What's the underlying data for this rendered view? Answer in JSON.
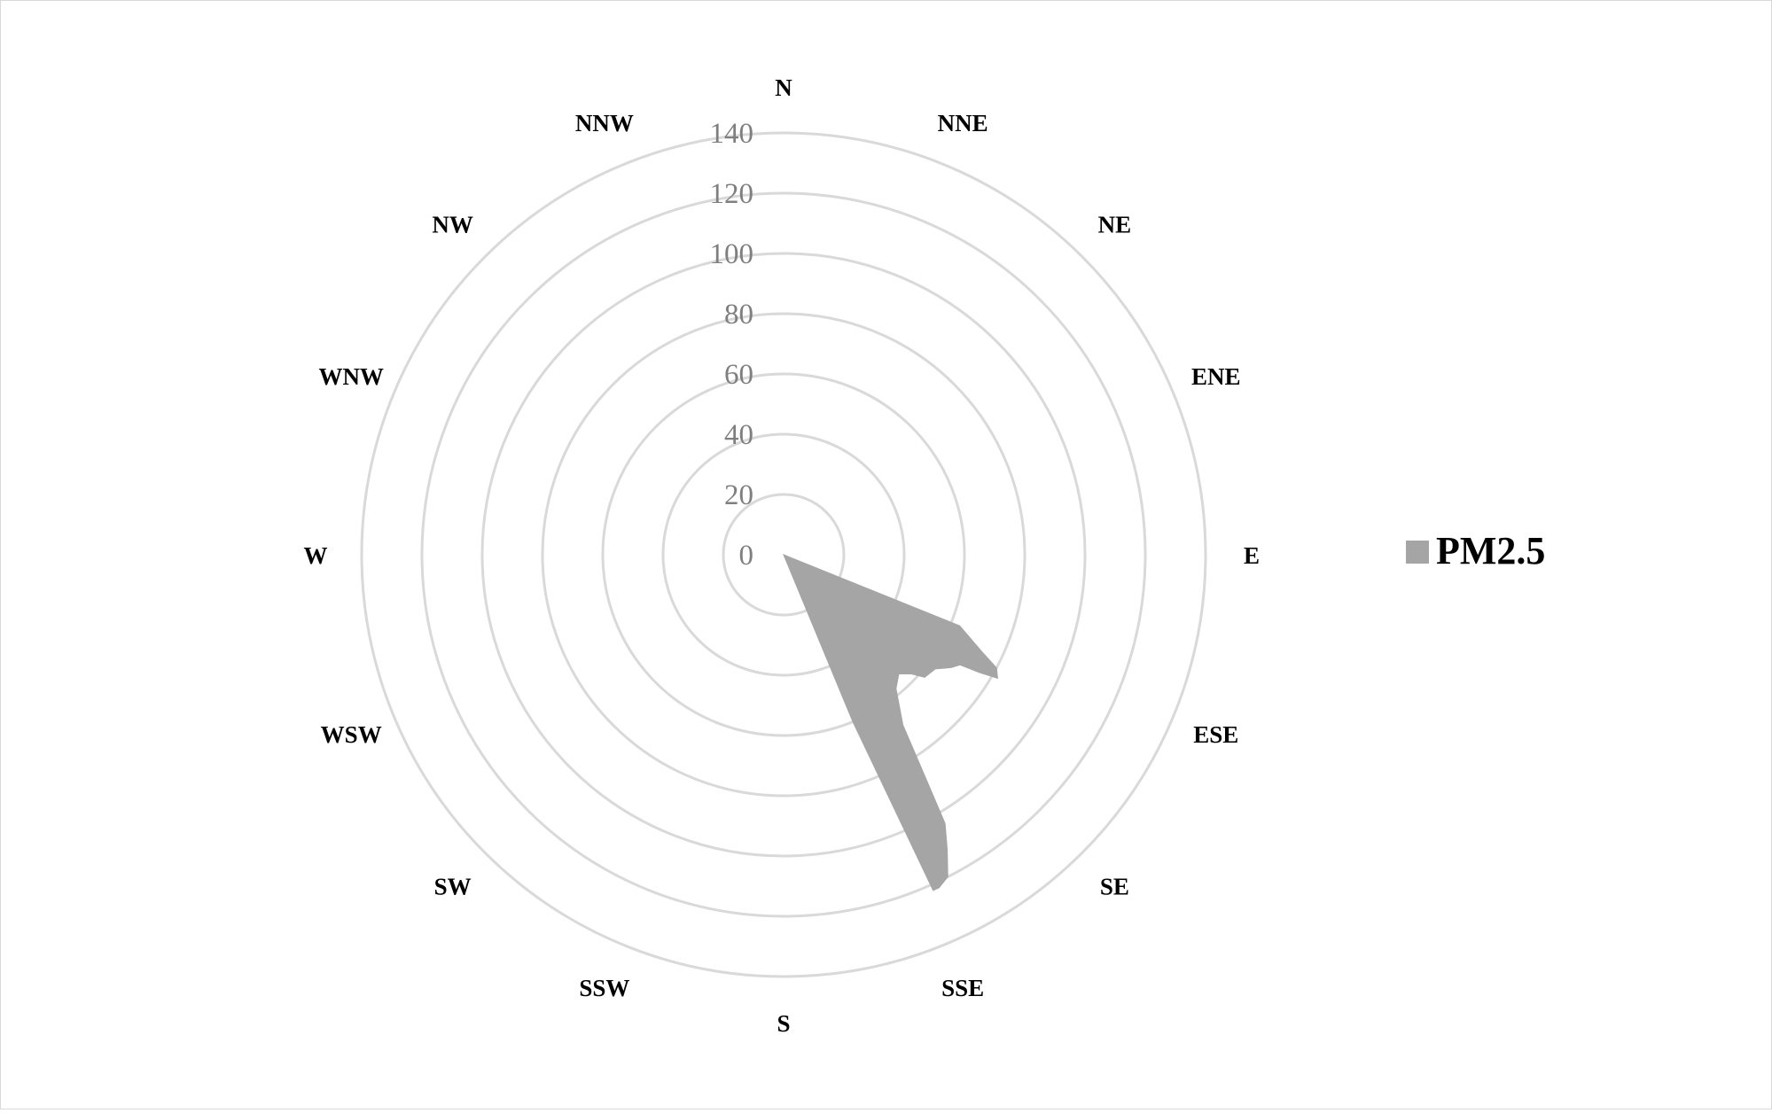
{
  "chart_data": {
    "type": "radar",
    "directions": [
      "N",
      "NNE",
      "NE",
      "ENE",
      "E",
      "ESE",
      "SE",
      "SSE",
      "S",
      "SSW",
      "SW",
      "WSW",
      "W",
      "WNW",
      "NW",
      "NNW"
    ],
    "rmax": 140,
    "ticks": [
      "0",
      "20",
      "40",
      "60",
      "80",
      "100",
      "120",
      "140"
    ],
    "tick_values": [
      0,
      20,
      40,
      60,
      80,
      100,
      120,
      140
    ],
    "series": [
      {
        "name": "PM2.5",
        "color": "#a5a5a5",
        "points": [
          {
            "angle": 0,
            "value": 0
          },
          {
            "angle": 112,
            "value": 63
          },
          {
            "angle": 116,
            "value": 73
          },
          {
            "angle": 118,
            "value": 80
          },
          {
            "angle": 120,
            "value": 82
          },
          {
            "angle": 121,
            "value": 76
          },
          {
            "angle": 122,
            "value": 69
          },
          {
            "angle": 124,
            "value": 67
          },
          {
            "angle": 127,
            "value": 63
          },
          {
            "angle": 131,
            "value": 62
          },
          {
            "angle": 133,
            "value": 58
          },
          {
            "angle": 136,
            "value": 55
          },
          {
            "angle": 140,
            "value": 58
          },
          {
            "angle": 145,
            "value": 69
          },
          {
            "angle": 147,
            "value": 83
          },
          {
            "angle": 149,
            "value": 104
          },
          {
            "angle": 151,
            "value": 112
          },
          {
            "angle": 153,
            "value": 120
          },
          {
            "angle": 155,
            "value": 122
          },
          {
            "angle": 156,
            "value": 122
          },
          {
            "angle": 157.5,
            "value": 60
          }
        ]
      }
    ],
    "legend": {
      "position": "right",
      "entries": [
        "PM2.5"
      ]
    }
  }
}
